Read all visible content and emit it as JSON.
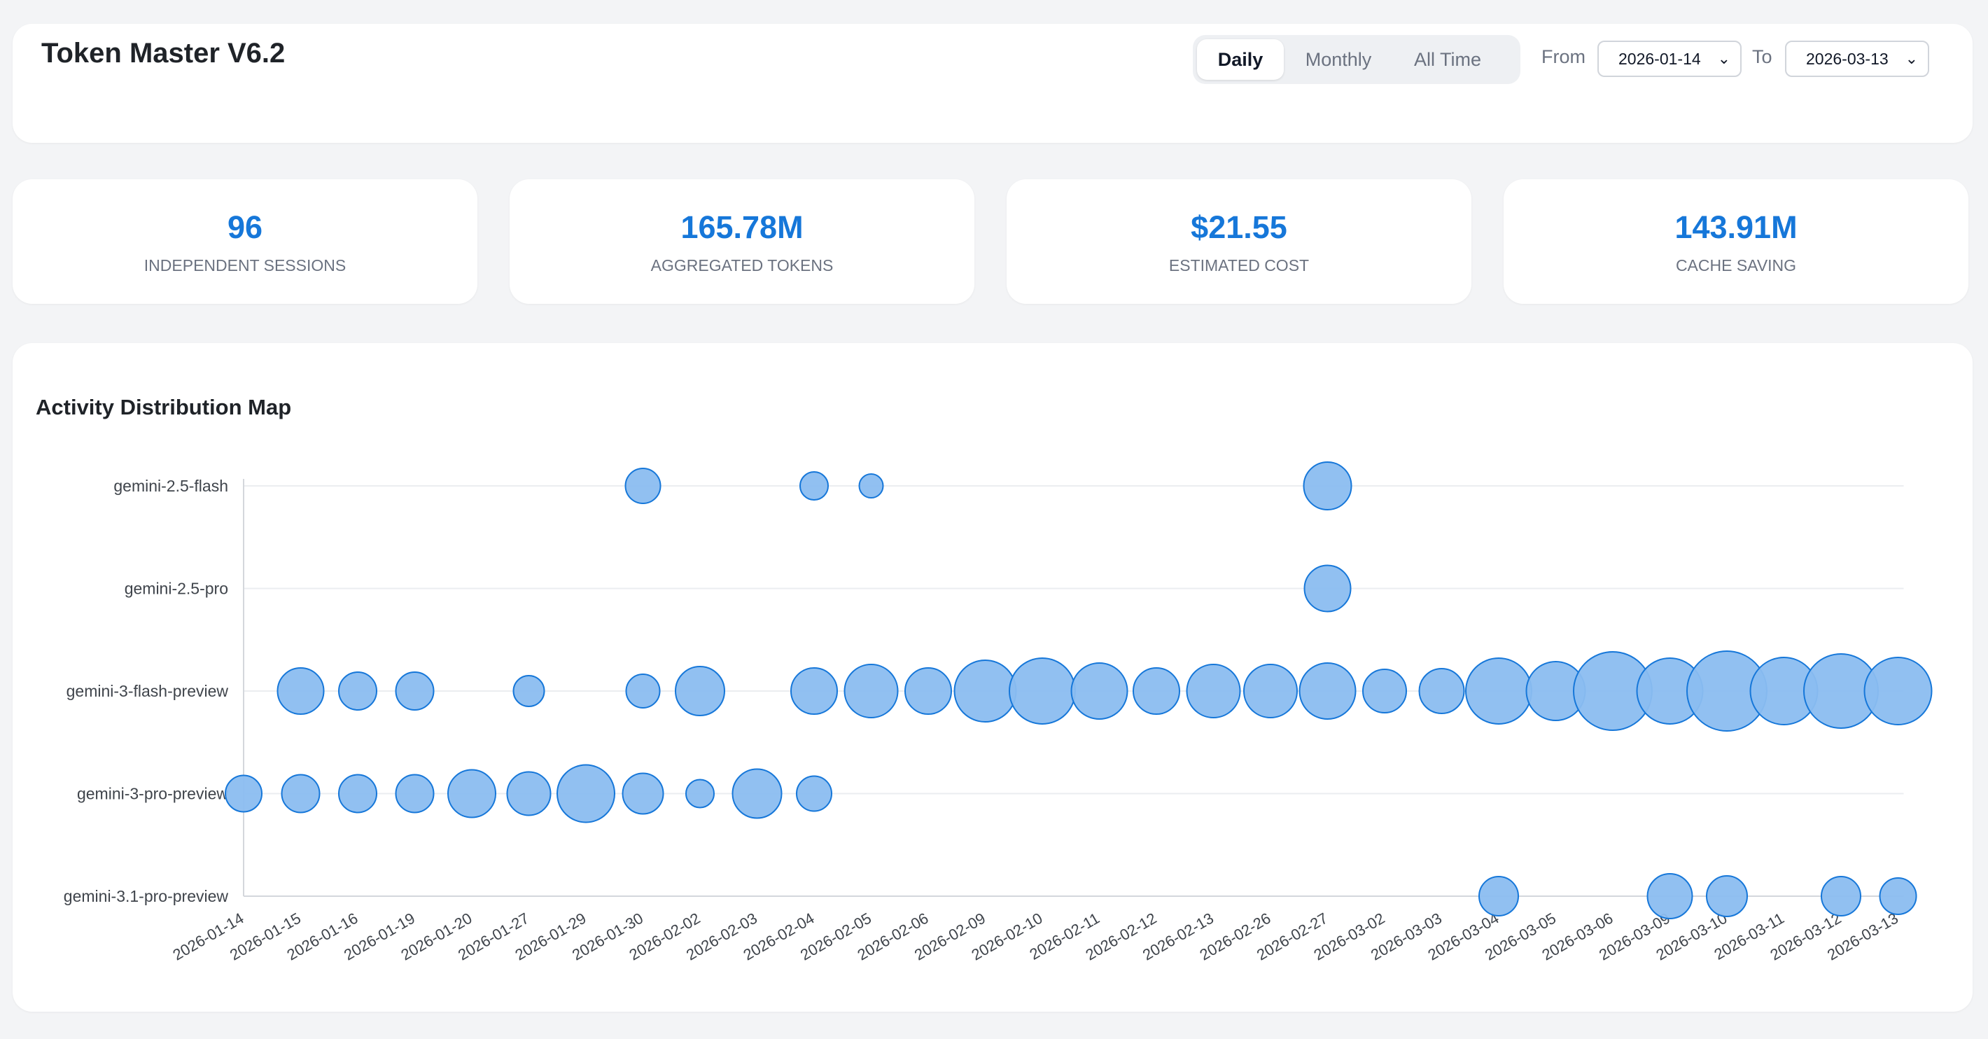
{
  "header": {
    "title": "Token Master V6.2",
    "tabs": [
      {
        "label": "Daily",
        "active": true
      },
      {
        "label": "Monthly",
        "active": false
      },
      {
        "label": "All Time",
        "active": false
      }
    ],
    "from_label": "From",
    "from_value": "2026-01-14",
    "to_label": "To",
    "to_value": "2026-03-13",
    "chevron_icon": "chevron-down-icon"
  },
  "stats": [
    {
      "value": "96",
      "label": "INDEPENDENT SESSIONS"
    },
    {
      "value": "165.78M",
      "label": "AGGREGATED TOKENS"
    },
    {
      "value": "$21.55",
      "label": "ESTIMATED COST"
    },
    {
      "value": "143.91M",
      "label": "CACHE SAVING"
    }
  ],
  "colors": {
    "accent": "#1677d9",
    "bubble_fill": "#8bbdf0",
    "bubble_stroke": "#1677d9",
    "background": "#f3f4f6",
    "card": "#ffffff"
  },
  "chart_data": {
    "type": "scatter",
    "title": "Activity Distribution Map",
    "x_categories": [
      "2026-01-14",
      "2026-01-15",
      "2026-01-16",
      "2026-01-19",
      "2026-01-20",
      "2026-01-27",
      "2026-01-29",
      "2026-01-30",
      "2026-02-02",
      "2026-02-03",
      "2026-02-04",
      "2026-02-05",
      "2026-02-06",
      "2026-02-09",
      "2026-02-10",
      "2026-02-11",
      "2026-02-12",
      "2026-02-13",
      "2026-02-26",
      "2026-02-27",
      "2026-03-02",
      "2026-03-03",
      "2026-03-04",
      "2026-03-05",
      "2026-03-06",
      "2026-03-09",
      "2026-03-10",
      "2026-03-11",
      "2026-03-12",
      "2026-03-13"
    ],
    "y_categories": [
      "gemini-2.5-flash",
      "gemini-2.5-pro",
      "gemini-3-flash-preview",
      "gemini-3-pro-preview",
      "gemini-3.1-pro-preview"
    ],
    "grid": true,
    "points": [
      {
        "x": "2026-01-30",
        "y": "gemini-2.5-flash",
        "size": 25
      },
      {
        "x": "2026-02-04",
        "y": "gemini-2.5-flash",
        "size": 20
      },
      {
        "x": "2026-02-05",
        "y": "gemini-2.5-flash",
        "size": 17
      },
      {
        "x": "2026-02-27",
        "y": "gemini-2.5-flash",
        "size": 34
      },
      {
        "x": "2026-02-27",
        "y": "gemini-2.5-pro",
        "size": 33
      },
      {
        "x": "2026-01-15",
        "y": "gemini-3-flash-preview",
        "size": 33
      },
      {
        "x": "2026-01-16",
        "y": "gemini-3-flash-preview",
        "size": 27
      },
      {
        "x": "2026-01-19",
        "y": "gemini-3-flash-preview",
        "size": 27
      },
      {
        "x": "2026-01-27",
        "y": "gemini-3-flash-preview",
        "size": 22
      },
      {
        "x": "2026-01-30",
        "y": "gemini-3-flash-preview",
        "size": 24
      },
      {
        "x": "2026-02-02",
        "y": "gemini-3-flash-preview",
        "size": 35
      },
      {
        "x": "2026-02-04",
        "y": "gemini-3-flash-preview",
        "size": 33
      },
      {
        "x": "2026-02-05",
        "y": "gemini-3-flash-preview",
        "size": 38
      },
      {
        "x": "2026-02-06",
        "y": "gemini-3-flash-preview",
        "size": 33
      },
      {
        "x": "2026-02-09",
        "y": "gemini-3-flash-preview",
        "size": 44
      },
      {
        "x": "2026-02-10",
        "y": "gemini-3-flash-preview",
        "size": 47
      },
      {
        "x": "2026-02-11",
        "y": "gemini-3-flash-preview",
        "size": 40
      },
      {
        "x": "2026-02-12",
        "y": "gemini-3-flash-preview",
        "size": 33
      },
      {
        "x": "2026-02-13",
        "y": "gemini-3-flash-preview",
        "size": 38
      },
      {
        "x": "2026-02-26",
        "y": "gemini-3-flash-preview",
        "size": 38
      },
      {
        "x": "2026-02-27",
        "y": "gemini-3-flash-preview",
        "size": 40
      },
      {
        "x": "2026-03-02",
        "y": "gemini-3-flash-preview",
        "size": 31
      },
      {
        "x": "2026-03-03",
        "y": "gemini-3-flash-preview",
        "size": 32
      },
      {
        "x": "2026-03-04",
        "y": "gemini-3-flash-preview",
        "size": 47
      },
      {
        "x": "2026-03-05",
        "y": "gemini-3-flash-preview",
        "size": 42
      },
      {
        "x": "2026-03-06",
        "y": "gemini-3-flash-preview",
        "size": 56
      },
      {
        "x": "2026-03-09",
        "y": "gemini-3-flash-preview",
        "size": 47
      },
      {
        "x": "2026-03-10",
        "y": "gemini-3-flash-preview",
        "size": 57
      },
      {
        "x": "2026-03-11",
        "y": "gemini-3-flash-preview",
        "size": 48
      },
      {
        "x": "2026-03-12",
        "y": "gemini-3-flash-preview",
        "size": 53
      },
      {
        "x": "2026-03-13",
        "y": "gemini-3-flash-preview",
        "size": 48
      },
      {
        "x": "2026-01-14",
        "y": "gemini-3-pro-preview",
        "size": 26
      },
      {
        "x": "2026-01-15",
        "y": "gemini-3-pro-preview",
        "size": 27
      },
      {
        "x": "2026-01-16",
        "y": "gemini-3-pro-preview",
        "size": 27
      },
      {
        "x": "2026-01-19",
        "y": "gemini-3-pro-preview",
        "size": 27
      },
      {
        "x": "2026-01-20",
        "y": "gemini-3-pro-preview",
        "size": 34
      },
      {
        "x": "2026-01-27",
        "y": "gemini-3-pro-preview",
        "size": 31
      },
      {
        "x": "2026-01-29",
        "y": "gemini-3-pro-preview",
        "size": 41
      },
      {
        "x": "2026-01-30",
        "y": "gemini-3-pro-preview",
        "size": 29
      },
      {
        "x": "2026-02-02",
        "y": "gemini-3-pro-preview",
        "size": 20
      },
      {
        "x": "2026-02-03",
        "y": "gemini-3-pro-preview",
        "size": 35
      },
      {
        "x": "2026-02-04",
        "y": "gemini-3-pro-preview",
        "size": 25
      },
      {
        "x": "2026-03-04",
        "y": "gemini-3.1-pro-preview",
        "size": 28
      },
      {
        "x": "2026-03-09",
        "y": "gemini-3.1-pro-preview",
        "size": 32
      },
      {
        "x": "2026-03-10",
        "y": "gemini-3.1-pro-preview",
        "size": 29
      },
      {
        "x": "2026-03-12",
        "y": "gemini-3.1-pro-preview",
        "size": 28
      },
      {
        "x": "2026-03-13",
        "y": "gemini-3.1-pro-preview",
        "size": 26
      }
    ]
  }
}
